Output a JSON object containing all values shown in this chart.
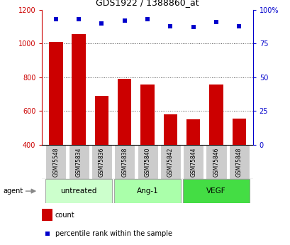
{
  "title": "GDS1922 / 1388860_at",
  "samples": [
    "GSM75548",
    "GSM75834",
    "GSM75836",
    "GSM75838",
    "GSM75840",
    "GSM75842",
    "GSM75844",
    "GSM75846",
    "GSM75848"
  ],
  "counts": [
    1010,
    1055,
    690,
    790,
    755,
    580,
    550,
    758,
    553
  ],
  "percentiles": [
    93,
    93,
    90,
    92,
    93,
    88,
    87,
    91,
    88
  ],
  "groups": [
    {
      "label": "untreated",
      "indices": [
        0,
        1,
        2
      ],
      "color": "#ccffcc"
    },
    {
      "label": "Ang-1",
      "indices": [
        3,
        4,
        5
      ],
      "color": "#aaffaa"
    },
    {
      "label": "VEGF",
      "indices": [
        6,
        7,
        8
      ],
      "color": "#44dd44"
    }
  ],
  "bar_color": "#cc0000",
  "dot_color": "#0000cc",
  "left_axis_color": "#cc0000",
  "right_axis_color": "#0000cc",
  "ylim_left": [
    400,
    1200
  ],
  "ylim_right": [
    0,
    100
  ],
  "yticks_left": [
    400,
    600,
    800,
    1000,
    1200
  ],
  "yticks_right": [
    0,
    25,
    50,
    75,
    100
  ],
  "ytick_labels_right": [
    "0",
    "25",
    "50",
    "75",
    "100%"
  ],
  "background_color": "#ffffff",
  "plot_bg_color": "#ffffff",
  "grid_color": "#555555",
  "sample_bg_color": "#cccccc",
  "group_border_color": "#888888"
}
